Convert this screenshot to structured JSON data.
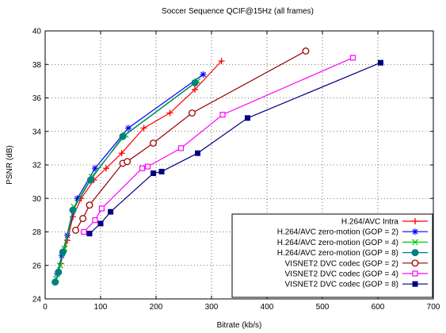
{
  "chart_data": {
    "type": "line",
    "title": "Soccer Sequence QCIF@15Hz (all frames)",
    "xlabel": "Bitrate (kb/s)",
    "ylabel": "PSNR (dB)",
    "xlim": [
      0,
      700
    ],
    "ylim": [
      24,
      40
    ],
    "xticks": [
      "0",
      "100",
      "200",
      "300",
      "400",
      "500",
      "600",
      "700"
    ],
    "yticks": [
      "24",
      "26",
      "28",
      "30",
      "32",
      "34",
      "36",
      "38",
      "40"
    ],
    "grid": true,
    "legend_position": "bottom-right",
    "series": [
      {
        "name": "H.264/AVC Intra",
        "color": "#ff0000",
        "marker": "plus",
        "x": [
          28,
          40,
          50,
          65,
          88,
          110,
          138,
          178,
          225,
          270,
          318
        ],
        "y": [
          26.1,
          27.5,
          28.9,
          30.0,
          31.1,
          31.8,
          32.7,
          34.2,
          35.1,
          36.5,
          38.2
        ]
      },
      {
        "name": "H.264/AVC zero-motion (GOP = 2)",
        "color": "#0000ff",
        "marker": "star",
        "x": [
          22,
          30,
          40,
          58,
          90,
          150,
          285
        ],
        "y": [
          25.5,
          26.6,
          27.8,
          30.0,
          31.8,
          34.2,
          37.4
        ]
      },
      {
        "name": "H.264/AVC zero-motion (GOP = 4)",
        "color": "#00cc00",
        "marker": "x",
        "x": [
          20,
          27,
          35,
          52,
          84,
          145,
          275
        ],
        "y": [
          25.2,
          26.0,
          27.0,
          29.5,
          31.3,
          33.8,
          37.0
        ]
      },
      {
        "name": "H.264/AVC zero-motion (GOP = 8)",
        "color": "#008080",
        "marker": "circle-filled",
        "x": [
          18,
          24,
          32,
          50,
          82,
          140,
          270
        ],
        "y": [
          25.0,
          25.6,
          26.8,
          29.3,
          31.1,
          33.7,
          36.9
        ]
      },
      {
        "name": "VISNET2 DVC codec (GOP = 2)",
        "color": "#990000",
        "marker": "circle-open",
        "x": [
          55,
          68,
          80,
          140,
          148,
          195,
          265,
          470
        ],
        "y": [
          28.1,
          28.8,
          29.6,
          32.1,
          32.2,
          33.3,
          35.1,
          38.8
        ]
      },
      {
        "name": "VISNET2 DVC codec (GOP = 4)",
        "color": "#ff00ff",
        "marker": "square-open",
        "x": [
          70,
          90,
          102,
          175,
          185,
          245,
          320,
          555
        ],
        "y": [
          28.0,
          28.7,
          29.4,
          31.8,
          31.9,
          33.0,
          35.0,
          38.4
        ]
      },
      {
        "name": "VISNET2 DVC codec (GOP = 8)",
        "color": "#000080",
        "marker": "square-filled",
        "x": [
          80,
          100,
          118,
          195,
          210,
          275,
          365,
          605
        ],
        "y": [
          27.9,
          28.5,
          29.2,
          31.5,
          31.6,
          32.7,
          34.8,
          38.1
        ]
      }
    ]
  }
}
